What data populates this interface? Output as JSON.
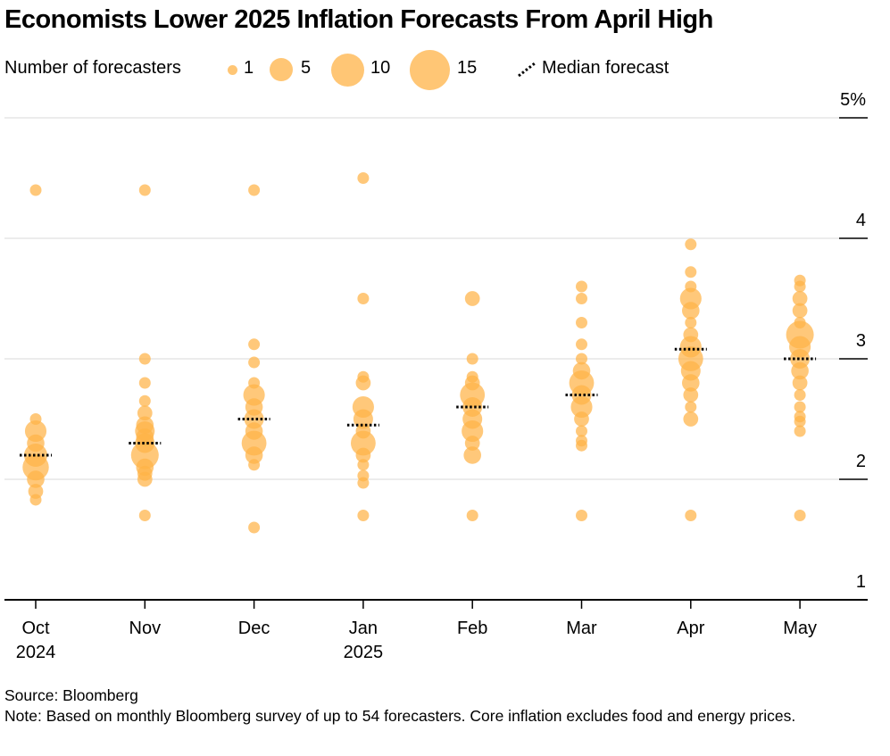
{
  "title": "Economists Lower 2025 Inflation Forecasts From April High",
  "legend": {
    "label": "Number of forecasters",
    "sizes": [
      {
        "label": "1",
        "count": 1
      },
      {
        "label": "5",
        "count": 5
      },
      {
        "label": "10",
        "count": 10
      },
      {
        "label": "15",
        "count": 15
      }
    ],
    "median_label": "Median forecast"
  },
  "footer": {
    "source": "Source: Bloomberg",
    "note": "Note: Based on monthly Bloomberg survey of up to 54 forecasters. Core inflation excludes food and energy prices."
  },
  "colors": {
    "bubble": "#ffb347",
    "grid": "#e6e6e6",
    "axis": "#000000",
    "median": "#000000"
  },
  "chart_data": {
    "type": "scatter",
    "subtype": "bubble-strip",
    "title": "Economists Lower 2025 Inflation Forecasts From April High",
    "ylabel": "",
    "ylim": [
      1,
      5
    ],
    "y_ticks": [
      {
        "value": 5,
        "label": "5%"
      },
      {
        "value": 4,
        "label": "4"
      },
      {
        "value": 3,
        "label": "3"
      },
      {
        "value": 2,
        "label": "2"
      },
      {
        "value": 1,
        "label": "1"
      }
    ],
    "categories": [
      {
        "month": "Oct",
        "year": "2024"
      },
      {
        "month": "Nov",
        "year": ""
      },
      {
        "month": "Dec",
        "year": ""
      },
      {
        "month": "Jan",
        "year": "2025"
      },
      {
        "month": "Feb",
        "year": ""
      },
      {
        "month": "Mar",
        "year": ""
      },
      {
        "month": "Apr",
        "year": ""
      },
      {
        "month": "May",
        "year": ""
      }
    ],
    "medians": [
      2.2,
      2.3,
      2.5,
      2.45,
      2.6,
      2.7,
      3.08,
      3.0
    ],
    "bubbles": [
      [
        [
          4.4,
          1
        ],
        [
          2.5,
          1
        ],
        [
          2.4,
          5
        ],
        [
          2.3,
          3
        ],
        [
          2.2,
          6
        ],
        [
          2.1,
          8
        ],
        [
          2.0,
          3
        ],
        [
          1.9,
          2
        ],
        [
          1.83,
          1
        ]
      ],
      [
        [
          4.4,
          1
        ],
        [
          3.0,
          1
        ],
        [
          2.8,
          1
        ],
        [
          2.65,
          1
        ],
        [
          2.55,
          2
        ],
        [
          2.45,
          3
        ],
        [
          2.4,
          4
        ],
        [
          2.35,
          3
        ],
        [
          2.3,
          4
        ],
        [
          2.2,
          9
        ],
        [
          2.1,
          3
        ],
        [
          2.05,
          2
        ],
        [
          2.0,
          2
        ],
        [
          1.7,
          1
        ]
      ],
      [
        [
          4.4,
          1
        ],
        [
          3.12,
          1
        ],
        [
          2.97,
          1
        ],
        [
          2.8,
          1
        ],
        [
          2.7,
          5
        ],
        [
          2.6,
          3
        ],
        [
          2.5,
          4
        ],
        [
          2.4,
          3
        ],
        [
          2.3,
          7
        ],
        [
          2.2,
          3
        ],
        [
          2.12,
          1
        ],
        [
          1.6,
          1
        ]
      ],
      [
        [
          4.5,
          1
        ],
        [
          3.5,
          1
        ],
        [
          2.85,
          1
        ],
        [
          2.8,
          2
        ],
        [
          2.6,
          5
        ],
        [
          2.5,
          4
        ],
        [
          2.4,
          2
        ],
        [
          2.3,
          7
        ],
        [
          2.2,
          2
        ],
        [
          2.12,
          1
        ],
        [
          2.03,
          1
        ],
        [
          1.97,
          1
        ],
        [
          1.7,
          1
        ]
      ],
      [
        [
          3.5,
          2
        ],
        [
          3.0,
          1
        ],
        [
          2.85,
          1
        ],
        [
          2.8,
          2
        ],
        [
          2.7,
          7
        ],
        [
          2.6,
          4
        ],
        [
          2.5,
          4
        ],
        [
          2.4,
          5
        ],
        [
          2.3,
          2
        ],
        [
          2.2,
          3
        ],
        [
          1.7,
          1
        ]
      ],
      [
        [
          3.6,
          1
        ],
        [
          3.5,
          1
        ],
        [
          3.3,
          1
        ],
        [
          3.12,
          1
        ],
        [
          3.0,
          1
        ],
        [
          2.9,
          3
        ],
        [
          2.8,
          7
        ],
        [
          2.7,
          4
        ],
        [
          2.6,
          5
        ],
        [
          2.5,
          2
        ],
        [
          2.4,
          1
        ],
        [
          2.32,
          1
        ],
        [
          2.28,
          1
        ],
        [
          1.7,
          1
        ]
      ],
      [
        [
          3.95,
          1
        ],
        [
          3.72,
          1
        ],
        [
          3.6,
          1
        ],
        [
          3.5,
          5
        ],
        [
          3.4,
          3
        ],
        [
          3.3,
          1
        ],
        [
          3.2,
          2
        ],
        [
          3.1,
          5
        ],
        [
          3.0,
          7
        ],
        [
          2.9,
          4
        ],
        [
          2.8,
          3
        ],
        [
          2.7,
          2
        ],
        [
          2.6,
          1
        ],
        [
          2.5,
          2
        ],
        [
          1.7,
          1
        ]
      ],
      [
        [
          3.65,
          1
        ],
        [
          3.6,
          1
        ],
        [
          3.5,
          2
        ],
        [
          3.4,
          2
        ],
        [
          3.3,
          1
        ],
        [
          3.2,
          9
        ],
        [
          3.1,
          5
        ],
        [
          3.0,
          4
        ],
        [
          2.9,
          3
        ],
        [
          2.8,
          2
        ],
        [
          2.7,
          1
        ],
        [
          2.6,
          1
        ],
        [
          2.52,
          1
        ],
        [
          2.48,
          1
        ],
        [
          2.4,
          1
        ],
        [
          1.7,
          1
        ]
      ]
    ]
  }
}
